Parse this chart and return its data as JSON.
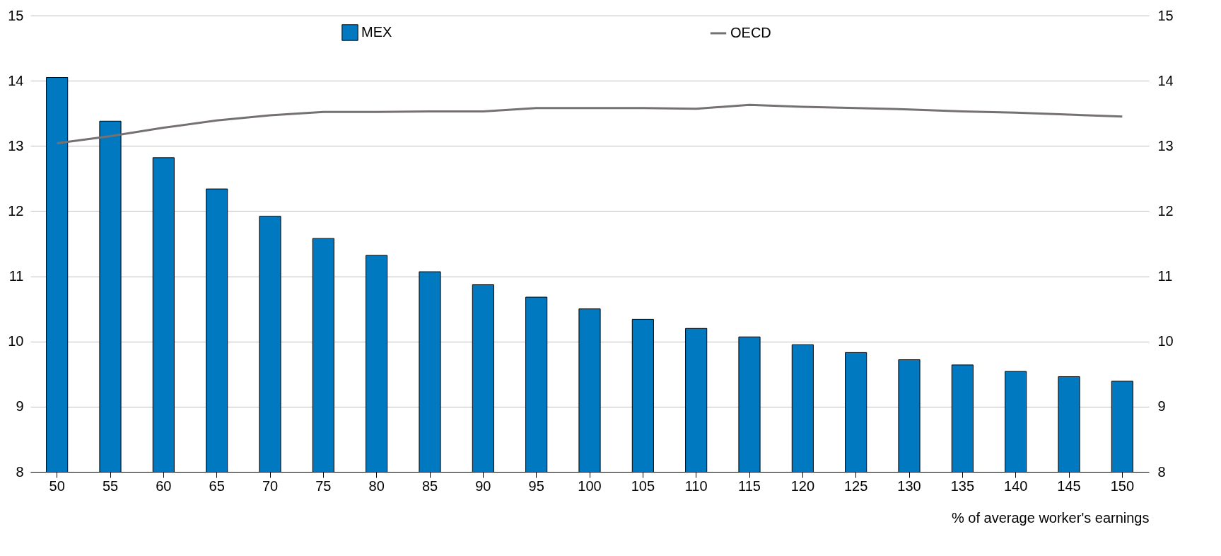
{
  "chart_data": {
    "type": "bar",
    "xlabel": "% of average worker's earnings",
    "categories": [
      "50",
      "55",
      "60",
      "65",
      "70",
      "75",
      "80",
      "85",
      "90",
      "95",
      "100",
      "105",
      "110",
      "115",
      "120",
      "125",
      "130",
      "135",
      "140",
      "145",
      "150"
    ],
    "series": [
      {
        "name": "MEX",
        "color": "#0079c1",
        "values": [
          14.05,
          13.38,
          12.82,
          12.34,
          11.92,
          11.58,
          11.32,
          11.07,
          10.87,
          10.68,
          10.5,
          10.34,
          10.2,
          10.07,
          9.95,
          9.83,
          9.72,
          9.64,
          9.54,
          9.46,
          9.39
        ]
      },
      {
        "name": "OECD",
        "type": "line",
        "color": "#767171",
        "values": [
          13.04,
          13.15,
          13.28,
          13.39,
          13.47,
          13.52,
          13.52,
          13.53,
          13.53,
          13.58,
          13.58,
          13.58,
          13.57,
          13.63,
          13.6,
          13.58,
          13.56,
          13.53,
          13.51,
          13.48,
          13.45
        ]
      }
    ],
    "ylim": [
      8,
      15
    ],
    "yticks": [
      8,
      9,
      10,
      11,
      12,
      13,
      14,
      15
    ],
    "y2lim": [
      8,
      15
    ],
    "y2ticks": [
      8,
      9,
      10,
      11,
      12,
      13,
      14,
      15
    ],
    "grid": "y",
    "legend": "top",
    "marker": "none",
    "line_style": "solid"
  }
}
